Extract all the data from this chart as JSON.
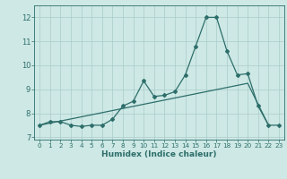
{
  "xlabel": "Humidex (Indice chaleur)",
  "ylabel": "",
  "xlim": [
    -0.5,
    23.5
  ],
  "ylim": [
    6.9,
    12.5
  ],
  "yticks": [
    7,
    8,
    9,
    10,
    11,
    12
  ],
  "xticks": [
    0,
    1,
    2,
    3,
    4,
    5,
    6,
    7,
    8,
    9,
    10,
    11,
    12,
    13,
    14,
    15,
    16,
    17,
    18,
    19,
    20,
    21,
    22,
    23
  ],
  "bg_color": "#cde8e5",
  "grid_color": "#aaccca",
  "line_color": "#2d6e6a",
  "line1_x": [
    0,
    1,
    2,
    3,
    4,
    5,
    6,
    7,
    8,
    9,
    10,
    11,
    12,
    13,
    14,
    15,
    16,
    17,
    18,
    19,
    20,
    21,
    22,
    23
  ],
  "line1_y": [
    7.5,
    7.65,
    7.65,
    7.5,
    7.45,
    7.5,
    7.5,
    7.75,
    8.3,
    8.5,
    9.35,
    8.7,
    8.75,
    8.9,
    9.6,
    10.8,
    12.0,
    12.0,
    10.6,
    9.6,
    9.65,
    8.3,
    7.5,
    7.5
  ],
  "line2_x": [
    0,
    20,
    22
  ],
  "line2_y": [
    7.5,
    9.25,
    7.5
  ]
}
